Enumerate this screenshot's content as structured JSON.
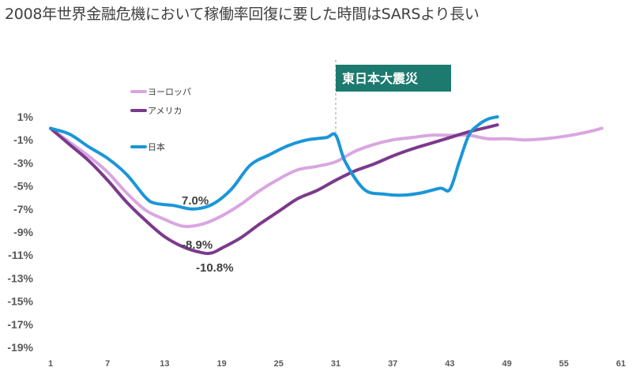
{
  "chart_data": {
    "type": "line",
    "title": "2008年世界金融危機において稼働率回復に要した時間はSARSより長い",
    "xlabel": "",
    "ylabel": "",
    "xlim": [
      1,
      61
    ],
    "ylim": [
      -19,
      1
    ],
    "x_ticks": [
      "1",
      "7",
      "13",
      "19",
      "25",
      "31",
      "37",
      "43",
      "49",
      "55",
      "61"
    ],
    "y_ticks": [
      "1%",
      "-1%",
      "-3%",
      "-5%",
      "-7%",
      "-9%",
      "-11%",
      "-13%",
      "-15%",
      "-17%",
      "-19%"
    ],
    "y_tick_values": [
      1,
      -1,
      -3,
      -5,
      -7,
      -9,
      -11,
      -13,
      -15,
      -17,
      -19
    ],
    "grid": false,
    "legend_position": "top-left",
    "series": [
      {
        "name": "ヨーロッパ",
        "color": "#D9A6E0",
        "x": [
          1,
          3,
          5,
          7,
          9,
          11,
          13,
          15,
          17,
          19,
          21,
          23,
          25,
          27,
          29,
          31,
          33,
          35,
          37,
          39,
          41,
          43,
          45,
          47,
          49,
          51,
          53,
          55,
          57,
          59
        ],
        "values": [
          0,
          -1.2,
          -2.4,
          -3.8,
          -5.6,
          -7.1,
          -7.9,
          -8.5,
          -8.3,
          -7.6,
          -6.6,
          -5.4,
          -4.4,
          -3.6,
          -3.3,
          -2.9,
          -2.0,
          -1.4,
          -1.0,
          -0.8,
          -0.6,
          -0.6,
          -0.6,
          -0.9,
          -0.9,
          -1.0,
          -0.9,
          -0.7,
          -0.4,
          0.0
        ]
      },
      {
        "name": "アメリカ",
        "color": "#7B3A8C",
        "x": [
          1,
          3,
          5,
          7,
          9,
          11,
          13,
          15,
          17,
          18,
          19,
          21,
          23,
          25,
          27,
          29,
          31,
          33,
          35,
          37,
          39,
          41,
          43,
          45,
          47,
          48
        ],
        "values": [
          0,
          -1.4,
          -2.8,
          -4.5,
          -6.4,
          -8.0,
          -9.4,
          -10.3,
          -10.8,
          -10.8,
          -10.4,
          -9.5,
          -8.3,
          -7.2,
          -6.1,
          -5.4,
          -4.5,
          -3.7,
          -3.1,
          -2.4,
          -1.8,
          -1.3,
          -0.8,
          -0.3,
          0.1,
          0.3
        ]
      },
      {
        "name": "日本",
        "color": "#1A96D8",
        "x": [
          1,
          3,
          5,
          7,
          9,
          11,
          12,
          14,
          16,
          18,
          20,
          22,
          24,
          26,
          28,
          30,
          31,
          32,
          34,
          36,
          38,
          40,
          42,
          43,
          44,
          45,
          46,
          47,
          48
        ],
        "values": [
          0,
          -0.5,
          -1.6,
          -2.6,
          -4.0,
          -6.0,
          -6.5,
          -6.7,
          -7.0,
          -6.6,
          -5.3,
          -3.2,
          -2.3,
          -1.5,
          -1.0,
          -0.8,
          -0.6,
          -2.9,
          -5.3,
          -5.7,
          -5.8,
          -5.6,
          -5.2,
          -5.3,
          -2.9,
          -0.6,
          0.3,
          0.8,
          1.0
        ]
      }
    ],
    "annotations": [
      {
        "text": "7.0%",
        "series": "日本",
        "x": 16
      },
      {
        "text": "-8.9%",
        "series": "ヨーロッパ",
        "x": 16
      },
      {
        "text": "-10.8%",
        "series": "アメリカ",
        "x": 18
      },
      {
        "text": "東日本大震災",
        "x": 31,
        "type": "event",
        "color": "#1C7A6E"
      }
    ]
  }
}
